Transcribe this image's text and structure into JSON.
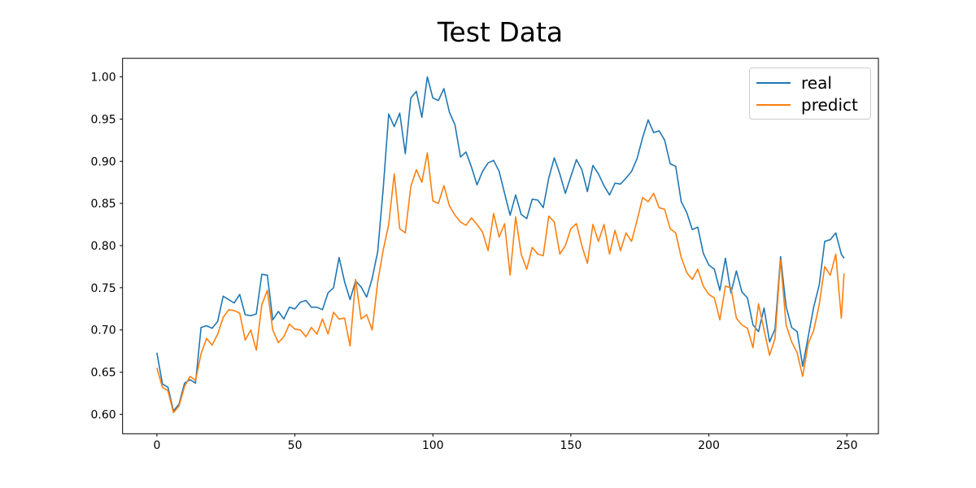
{
  "figure": {
    "background": "#ffffff"
  },
  "chart_data": {
    "type": "line",
    "title": "Test Data",
    "xlabel": "",
    "ylabel": "",
    "grid": false,
    "axes_color": "#000000",
    "xlim": [
      -12.45,
      261.45
    ],
    "ylim": [
      0.577,
      1.022
    ],
    "legend": {
      "position": "upper right",
      "entries": [
        "real",
        "predict"
      ]
    },
    "xticks": {
      "positions": [
        0,
        50,
        100,
        150,
        200,
        250
      ],
      "labels": [
        "0",
        "50",
        "100",
        "150",
        "200",
        "250"
      ]
    },
    "yticks": {
      "positions": [
        0.6,
        0.65,
        0.7,
        0.75,
        0.8,
        0.85,
        0.9,
        0.95,
        1.0
      ],
      "labels": [
        "0.60",
        "0.65",
        "0.70",
        "0.75",
        "0.80",
        "0.85",
        "0.90",
        "0.95",
        "1.00"
      ]
    },
    "x": [
      0,
      2,
      4,
      6,
      8,
      10,
      12,
      14,
      16,
      18,
      20,
      22,
      24,
      26,
      28,
      30,
      32,
      34,
      36,
      38,
      40,
      42,
      44,
      46,
      48,
      50,
      52,
      54,
      56,
      58,
      60,
      62,
      64,
      66,
      68,
      70,
      72,
      74,
      76,
      78,
      80,
      82,
      84,
      86,
      88,
      90,
      92,
      94,
      96,
      98,
      100,
      102,
      104,
      106,
      108,
      110,
      112,
      114,
      116,
      118,
      120,
      122,
      124,
      126,
      128,
      130,
      132,
      134,
      136,
      138,
      140,
      142,
      144,
      146,
      148,
      150,
      152,
      154,
      156,
      158,
      160,
      162,
      164,
      166,
      168,
      170,
      172,
      174,
      176,
      178,
      180,
      182,
      184,
      186,
      188,
      190,
      192,
      194,
      196,
      198,
      200,
      202,
      204,
      206,
      208,
      210,
      212,
      214,
      216,
      218,
      220,
      222,
      224,
      226,
      228,
      230,
      232,
      234,
      236,
      238,
      240,
      242,
      244,
      246,
      248,
      249
    ],
    "series": [
      {
        "name": "real",
        "color": "#1f77b4",
        "values": [
          0.673,
          0.636,
          0.632,
          0.604,
          0.612,
          0.637,
          0.641,
          0.637,
          0.703,
          0.705,
          0.702,
          0.71,
          0.74,
          0.736,
          0.732,
          0.742,
          0.718,
          0.717,
          0.719,
          0.766,
          0.765,
          0.712,
          0.722,
          0.713,
          0.727,
          0.725,
          0.733,
          0.735,
          0.727,
          0.727,
          0.724,
          0.744,
          0.75,
          0.786,
          0.757,
          0.736,
          0.758,
          0.751,
          0.739,
          0.761,
          0.793,
          0.868,
          0.956,
          0.941,
          0.957,
          0.909,
          0.975,
          0.983,
          0.952,
          1.0,
          0.975,
          0.972,
          0.986,
          0.958,
          0.943,
          0.905,
          0.911,
          0.893,
          0.872,
          0.888,
          0.898,
          0.901,
          0.888,
          0.862,
          0.836,
          0.86,
          0.837,
          0.832,
          0.855,
          0.854,
          0.845,
          0.88,
          0.904,
          0.885,
          0.862,
          0.882,
          0.902,
          0.89,
          0.864,
          0.895,
          0.885,
          0.871,
          0.86,
          0.874,
          0.873,
          0.88,
          0.888,
          0.903,
          0.928,
          0.949,
          0.934,
          0.936,
          0.925,
          0.897,
          0.894,
          0.852,
          0.839,
          0.819,
          0.822,
          0.791,
          0.777,
          0.772,
          0.747,
          0.785,
          0.744,
          0.77,
          0.745,
          0.738,
          0.706,
          0.698,
          0.726,
          0.686,
          0.701,
          0.787,
          0.728,
          0.703,
          0.698,
          0.657,
          0.692,
          0.727,
          0.753,
          0.805,
          0.807,
          0.815,
          0.79,
          0.785
        ]
      },
      {
        "name": "predict",
        "color": "#ff7f0e",
        "values": [
          0.655,
          0.632,
          0.628,
          0.602,
          0.61,
          0.633,
          0.645,
          0.64,
          0.672,
          0.69,
          0.682,
          0.695,
          0.715,
          0.724,
          0.723,
          0.72,
          0.688,
          0.7,
          0.676,
          0.73,
          0.747,
          0.7,
          0.685,
          0.692,
          0.707,
          0.701,
          0.7,
          0.692,
          0.703,
          0.695,
          0.713,
          0.695,
          0.721,
          0.713,
          0.714,
          0.681,
          0.76,
          0.713,
          0.718,
          0.7,
          0.757,
          0.795,
          0.825,
          0.885,
          0.82,
          0.815,
          0.87,
          0.89,
          0.875,
          0.91,
          0.853,
          0.85,
          0.871,
          0.847,
          0.836,
          0.828,
          0.824,
          0.833,
          0.825,
          0.816,
          0.794,
          0.838,
          0.81,
          0.826,
          0.765,
          0.834,
          0.79,
          0.772,
          0.798,
          0.79,
          0.788,
          0.835,
          0.828,
          0.79,
          0.8,
          0.82,
          0.826,
          0.8,
          0.779,
          0.825,
          0.805,
          0.825,
          0.79,
          0.818,
          0.794,
          0.815,
          0.805,
          0.83,
          0.857,
          0.852,
          0.862,
          0.845,
          0.843,
          0.82,
          0.815,
          0.786,
          0.768,
          0.76,
          0.772,
          0.752,
          0.742,
          0.738,
          0.712,
          0.752,
          0.75,
          0.714,
          0.706,
          0.702,
          0.679,
          0.731,
          0.7,
          0.67,
          0.69,
          0.783,
          0.706,
          0.686,
          0.673,
          0.645,
          0.684,
          0.699,
          0.73,
          0.775,
          0.765,
          0.79,
          0.714,
          0.767
        ]
      }
    ]
  }
}
